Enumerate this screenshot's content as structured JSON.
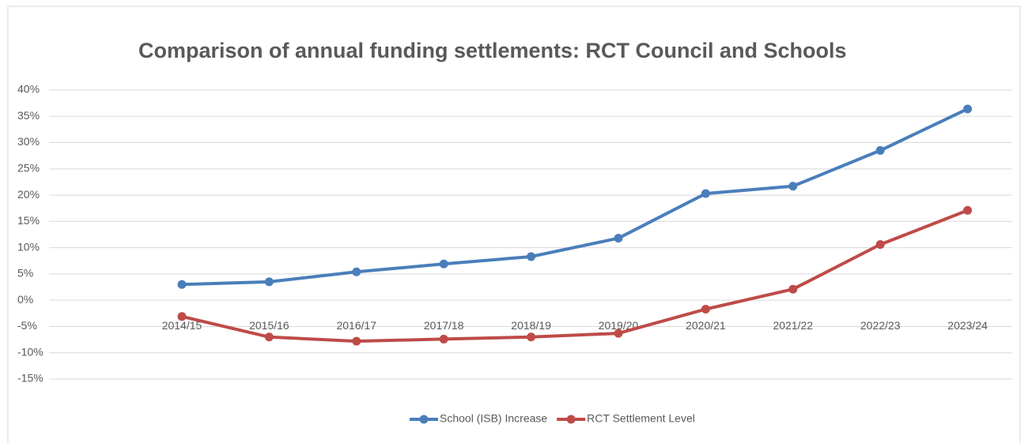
{
  "chart_data": {
    "type": "line",
    "title": "Comparison of annual funding settlements: RCT Council and Schools",
    "categories": [
      "2014/15",
      "2015/16",
      "2016/17",
      "2017/18",
      "2018/19",
      "2019/20",
      "2020/21",
      "2021/22",
      "2022/23",
      "2023/24"
    ],
    "series": [
      {
        "name": "School (ISB) Increase",
        "color": "#4a7ebb",
        "values": [
          3,
          3.5,
          5.4,
          6.9,
          8.3,
          11.8,
          20.3,
          21.7,
          28.5,
          36.4
        ]
      },
      {
        "name": "RCT Settlement Level",
        "color": "#be4b48",
        "values": [
          -3.1,
          -7,
          -7.8,
          -7.4,
          -7,
          -6.3,
          -1.7,
          2.1,
          10.6,
          17.1
        ]
      }
    ],
    "ylim": [
      -15,
      40
    ],
    "yticks": [
      {
        "value": -15,
        "label": "-15%"
      },
      {
        "value": -10,
        "label": "-10%"
      },
      {
        "value": -5,
        "label": "-5%"
      },
      {
        "value": 0,
        "label": "0%"
      },
      {
        "value": 5,
        "label": "5%"
      },
      {
        "value": 10,
        "label": "10%"
      },
      {
        "value": 15,
        "label": "15%"
      },
      {
        "value": 20,
        "label": "20%"
      },
      {
        "value": 25,
        "label": "25%"
      },
      {
        "value": 30,
        "label": "30%"
      },
      {
        "value": 35,
        "label": "35%"
      },
      {
        "value": 40,
        "label": "40%"
      }
    ],
    "grid": true,
    "legend": "bottom"
  }
}
